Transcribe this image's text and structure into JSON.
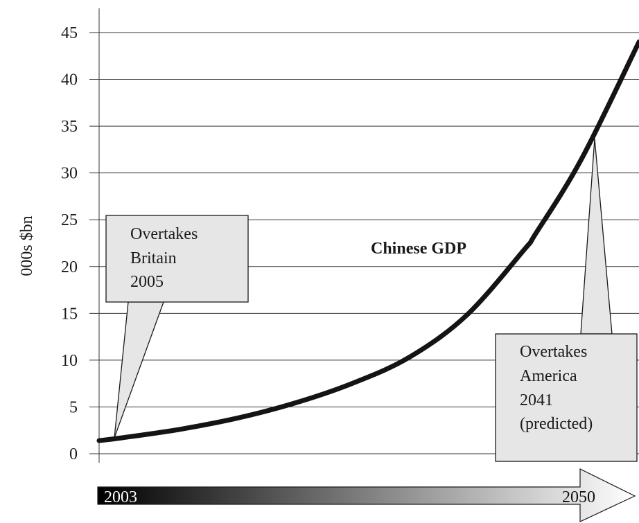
{
  "chart_data": {
    "type": "line",
    "ylabel": "000s $bn",
    "ylim": [
      0,
      45
    ],
    "y_ticks": [
      "0",
      "5",
      "10",
      "15",
      "20",
      "25",
      "30",
      "35",
      "40",
      "45"
    ],
    "x_range": [
      2003,
      2050
    ],
    "series": [
      {
        "name": "Chinese GDP",
        "x": [
          2003,
          2005,
          2010,
          2015,
          2020,
          2025,
          2030,
          2035,
          2040,
          2041,
          2045,
          2050
        ],
        "values": [
          1.4,
          1.7,
          2.6,
          3.8,
          5.4,
          7.5,
          10.3,
          14.8,
          21.8,
          23.5,
          31.5,
          44.0
        ]
      }
    ],
    "annotations": [
      {
        "key": "britain",
        "lines": [
          "Overtakes",
          "Britain",
          "2005"
        ],
        "x": 2004,
        "y": 1.7
      },
      {
        "key": "america",
        "lines": [
          "Overtakes",
          "America",
          "2041",
          "(predicted)"
        ],
        "x": 2047,
        "y": 33.7
      }
    ],
    "timeline": {
      "start_label": "2003",
      "end_label": "2050"
    },
    "grid": true,
    "colors": {
      "line": "#141414",
      "grid": "#333333",
      "callout_fill": "#e6e6e6",
      "callout_stroke": "#1a1a1a"
    }
  }
}
